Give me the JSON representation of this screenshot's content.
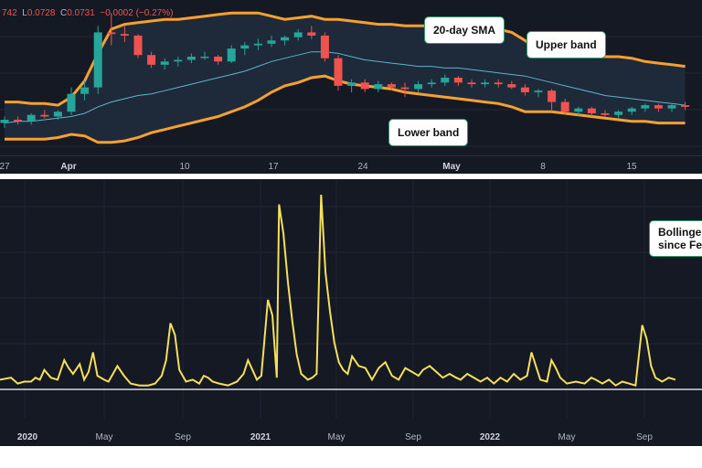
{
  "legend": {
    "open_value": "742",
    "low_label": "L",
    "low_value": "0.0728",
    "close_label": "C",
    "close_value": "0.0731",
    "change": "−0.0002 (−0.27%)"
  },
  "callouts": {
    "sma": "20-day SMA",
    "upper": "Upper band",
    "lower": "Lower band",
    "bollinger_line1": "Bollinge",
    "bollinger_line2": "since Fe"
  },
  "colors": {
    "background": "#151924",
    "up_candle": "#26a69a",
    "down_candle": "#ef5350",
    "band": "#f5a030",
    "sma": "#5fb3c9",
    "width_line": "#f4e05a",
    "baseline": "#ffffff"
  },
  "chart_data": [
    {
      "type": "candlestick",
      "x_ticks": [
        {
          "label": "27",
          "bold": false
        },
        {
          "label": "Apr",
          "bold": true
        },
        {
          "label": "10",
          "bold": false
        },
        {
          "label": "17",
          "bold": false
        },
        {
          "label": "24",
          "bold": false
        },
        {
          "label": "May",
          "bold": true
        },
        {
          "label": "8",
          "bold": false
        },
        {
          "label": "15",
          "bold": false
        }
      ],
      "candles": [
        [
          0.0712,
          0.0716,
          0.0709,
          0.0714
        ],
        [
          0.0714,
          0.0716,
          0.0711,
          0.0713
        ],
        [
          0.0713,
          0.0718,
          0.0711,
          0.0717
        ],
        [
          0.0717,
          0.072,
          0.0715,
          0.0716
        ],
        [
          0.0716,
          0.072,
          0.0714,
          0.0719
        ],
        [
          0.0719,
          0.0734,
          0.0717,
          0.073
        ],
        [
          0.073,
          0.0738,
          0.0726,
          0.0734
        ],
        [
          0.0734,
          0.0772,
          0.073,
          0.0768
        ],
        [
          0.0768,
          0.078,
          0.076,
          0.0767
        ],
        [
          0.0767,
          0.0772,
          0.0762,
          0.0766
        ],
        [
          0.0766,
          0.0767,
          0.0752,
          0.0754
        ],
        [
          0.0754,
          0.0756,
          0.0746,
          0.0748
        ],
        [
          0.0748,
          0.0752,
          0.0745,
          0.075
        ],
        [
          0.075,
          0.0753,
          0.0747,
          0.0751
        ],
        [
          0.0751,
          0.0755,
          0.0749,
          0.0753
        ],
        [
          0.0753,
          0.0756,
          0.0751,
          0.0753
        ],
        [
          0.0753,
          0.0754,
          0.0748,
          0.075
        ],
        [
          0.075,
          0.076,
          0.0749,
          0.0758
        ],
        [
          0.0758,
          0.0762,
          0.0754,
          0.076
        ],
        [
          0.076,
          0.0764,
          0.0757,
          0.0761
        ],
        [
          0.0761,
          0.0766,
          0.0759,
          0.0763
        ],
        [
          0.0763,
          0.0766,
          0.076,
          0.0765
        ],
        [
          0.0765,
          0.077,
          0.0763,
          0.0768
        ],
        [
          0.0768,
          0.0772,
          0.0764,
          0.0766
        ],
        [
          0.0766,
          0.0768,
          0.075,
          0.0752
        ],
        [
          0.0752,
          0.0754,
          0.0732,
          0.0735
        ],
        [
          0.0735,
          0.0739,
          0.0731,
          0.0737
        ],
        [
          0.0737,
          0.0739,
          0.0731,
          0.0733
        ],
        [
          0.0733,
          0.0738,
          0.0731,
          0.0736
        ],
        [
          0.0736,
          0.0737,
          0.0732,
          0.0734
        ],
        [
          0.0734,
          0.0737,
          0.0728,
          0.0733
        ],
        [
          0.0733,
          0.0738,
          0.0731,
          0.0736
        ],
        [
          0.0736,
          0.0739,
          0.0734,
          0.0737
        ],
        [
          0.0737,
          0.0742,
          0.0735,
          0.074
        ],
        [
          0.074,
          0.0741,
          0.0735,
          0.0737
        ],
        [
          0.0737,
          0.0739,
          0.0734,
          0.0736
        ],
        [
          0.0736,
          0.0739,
          0.0734,
          0.0737
        ],
        [
          0.0737,
          0.0739,
          0.0734,
          0.0736
        ],
        [
          0.0736,
          0.0738,
          0.0733,
          0.0734
        ],
        [
          0.0734,
          0.0736,
          0.0729,
          0.0731
        ],
        [
          0.0731,
          0.0733,
          0.0728,
          0.0732
        ],
        [
          0.0732,
          0.0733,
          0.0719,
          0.0725
        ],
        [
          0.0725,
          0.0727,
          0.0717,
          0.0719
        ],
        [
          0.0719,
          0.0722,
          0.0716,
          0.0721
        ],
        [
          0.0721,
          0.0722,
          0.0716,
          0.0718
        ],
        [
          0.0718,
          0.072,
          0.0716,
          0.0717
        ],
        [
          0.0717,
          0.072,
          0.0715,
          0.0719
        ],
        [
          0.0719,
          0.0722,
          0.0717,
          0.0721
        ],
        [
          0.0721,
          0.0724,
          0.0719,
          0.0723
        ],
        [
          0.0723,
          0.0724,
          0.0719,
          0.0721
        ],
        [
          0.0721,
          0.0724,
          0.0719,
          0.0723
        ],
        [
          0.0723,
          0.0725,
          0.072,
          0.0722
        ]
      ],
      "upper_band": [
        0.0725,
        0.0725,
        0.0724,
        0.0724,
        0.0723,
        0.0728,
        0.0738,
        0.0755,
        0.077,
        0.0773,
        0.0774,
        0.0775,
        0.0776,
        0.0776,
        0.0777,
        0.0778,
        0.0779,
        0.078,
        0.078,
        0.078,
        0.0778,
        0.0776,
        0.0777,
        0.0778,
        0.0776,
        0.0776,
        0.0775,
        0.0774,
        0.0773,
        0.0773,
        0.0772,
        0.0772,
        0.0772,
        0.0772,
        0.0772,
        0.0772,
        0.0771,
        0.077,
        0.0768,
        0.0763,
        0.0757,
        0.0754,
        0.0753,
        0.0753,
        0.0753,
        0.0753,
        0.0753,
        0.0752,
        0.075,
        0.0749,
        0.0748,
        0.0747
      ],
      "sma": [
        0.0712,
        0.0713,
        0.0713,
        0.0714,
        0.0715,
        0.0716,
        0.0718,
        0.0722,
        0.0725,
        0.0727,
        0.0729,
        0.073,
        0.0732,
        0.0734,
        0.0736,
        0.0738,
        0.074,
        0.0742,
        0.0744,
        0.0747,
        0.075,
        0.0752,
        0.0754,
        0.0756,
        0.0756,
        0.0755,
        0.0753,
        0.0751,
        0.075,
        0.0749,
        0.0748,
        0.0747,
        0.0747,
        0.0746,
        0.0746,
        0.0745,
        0.0744,
        0.0743,
        0.0742,
        0.0741,
        0.0739,
        0.0737,
        0.0735,
        0.0733,
        0.0731,
        0.0729,
        0.0728,
        0.0727,
        0.0726,
        0.0725,
        0.0724,
        0.0723
      ],
      "lower_band": [
        0.0702,
        0.0702,
        0.0702,
        0.0702,
        0.0703,
        0.0705,
        0.0704,
        0.07,
        0.07,
        0.0701,
        0.0703,
        0.0706,
        0.0708,
        0.071,
        0.0712,
        0.0714,
        0.0716,
        0.0719,
        0.0722,
        0.0726,
        0.0731,
        0.0735,
        0.0737,
        0.074,
        0.0741,
        0.0738,
        0.0736,
        0.0735,
        0.0734,
        0.0733,
        0.0731,
        0.073,
        0.0729,
        0.0728,
        0.0727,
        0.0726,
        0.0725,
        0.0724,
        0.0722,
        0.0719,
        0.0719,
        0.0719,
        0.0718,
        0.0717,
        0.0716,
        0.0715,
        0.0714,
        0.0713,
        0.0713,
        0.0712,
        0.0712,
        0.0712
      ],
      "ylim": [
        0.0692,
        0.0788
      ]
    },
    {
      "type": "line",
      "x_ticks": [
        {
          "label": "2020",
          "bold": true
        },
        {
          "label": "May",
          "bold": false
        },
        {
          "label": "Sep",
          "bold": false
        },
        {
          "label": "2021",
          "bold": true
        },
        {
          "label": "May",
          "bold": false
        },
        {
          "label": "Sep",
          "bold": false
        },
        {
          "label": "2022",
          "bold": true
        },
        {
          "label": "May",
          "bold": false
        },
        {
          "label": "Sep",
          "bold": false
        }
      ],
      "xlim": [
        2019.95,
        2023.12
      ],
      "ylim": [
        0,
        1.08
      ],
      "baseline": 0.0,
      "points": [
        [
          2019.95,
          0.05
        ],
        [
          2020.0,
          0.06
        ],
        [
          2020.03,
          0.03
        ],
        [
          2020.06,
          0.04
        ],
        [
          2020.09,
          0.04
        ],
        [
          2020.11,
          0.06
        ],
        [
          2020.13,
          0.05
        ],
        [
          2020.15,
          0.1
        ],
        [
          2020.18,
          0.06
        ],
        [
          2020.21,
          0.05
        ],
        [
          2020.24,
          0.15
        ],
        [
          2020.26,
          0.11
        ],
        [
          2020.28,
          0.08
        ],
        [
          2020.31,
          0.13
        ],
        [
          2020.33,
          0.05
        ],
        [
          2020.35,
          0.09
        ],
        [
          2020.37,
          0.19
        ],
        [
          2020.39,
          0.07
        ],
        [
          2020.42,
          0.05
        ],
        [
          2020.44,
          0.04
        ],
        [
          2020.46,
          0.08
        ],
        [
          2020.48,
          0.12
        ],
        [
          2020.51,
          0.07
        ],
        [
          2020.54,
          0.03
        ],
        [
          2020.58,
          0.02
        ],
        [
          2020.62,
          0.02
        ],
        [
          2020.65,
          0.03
        ],
        [
          2020.68,
          0.07
        ],
        [
          2020.7,
          0.15
        ],
        [
          2020.72,
          0.34
        ],
        [
          2020.74,
          0.28
        ],
        [
          2020.76,
          0.1
        ],
        [
          2020.79,
          0.04
        ],
        [
          2020.82,
          0.05
        ],
        [
          2020.85,
          0.03
        ],
        [
          2020.87,
          0.07
        ],
        [
          2020.89,
          0.06
        ],
        [
          2020.91,
          0.04
        ],
        [
          2020.94,
          0.03
        ],
        [
          2020.98,
          0.02
        ],
        [
          2021.02,
          0.04
        ],
        [
          2021.05,
          0.08
        ],
        [
          2021.07,
          0.15
        ],
        [
          2021.09,
          0.1
        ],
        [
          2021.11,
          0.05
        ],
        [
          2021.13,
          0.07
        ],
        [
          2021.16,
          0.46
        ],
        [
          2021.18,
          0.38
        ],
        [
          2021.2,
          0.06
        ],
        [
          2021.21,
          0.95
        ],
        [
          2021.23,
          0.8
        ],
        [
          2021.25,
          0.55
        ],
        [
          2021.27,
          0.35
        ],
        [
          2021.29,
          0.18
        ],
        [
          2021.31,
          0.08
        ],
        [
          2021.34,
          0.05
        ],
        [
          2021.36,
          0.06
        ],
        [
          2021.38,
          0.08
        ],
        [
          2021.4,
          1.0
        ],
        [
          2021.42,
          0.6
        ],
        [
          2021.44,
          0.4
        ],
        [
          2021.46,
          0.24
        ],
        [
          2021.48,
          0.14
        ],
        [
          2021.5,
          0.1
        ],
        [
          2021.52,
          0.08
        ],
        [
          2021.54,
          0.17
        ],
        [
          2021.57,
          0.12
        ],
        [
          2021.6,
          0.11
        ],
        [
          2021.63,
          0.05
        ],
        [
          2021.66,
          0.11
        ],
        [
          2021.69,
          0.14
        ],
        [
          2021.72,
          0.07
        ],
        [
          2021.75,
          0.05
        ],
        [
          2021.78,
          0.11
        ],
        [
          2021.81,
          0.09
        ],
        [
          2021.84,
          0.07
        ],
        [
          2021.86,
          0.1
        ],
        [
          2021.89,
          0.12
        ],
        [
          2021.92,
          0.09
        ],
        [
          2021.95,
          0.06
        ],
        [
          2021.98,
          0.08
        ],
        [
          2022.01,
          0.06
        ],
        [
          2022.03,
          0.05
        ],
        [
          2022.06,
          0.08
        ],
        [
          2022.09,
          0.06
        ],
        [
          2022.12,
          0.04
        ],
        [
          2022.15,
          0.06
        ],
        [
          2022.18,
          0.03
        ],
        [
          2022.21,
          0.06
        ],
        [
          2022.24,
          0.04
        ],
        [
          2022.27,
          0.08
        ],
        [
          2022.3,
          0.05
        ],
        [
          2022.33,
          0.07
        ],
        [
          2022.35,
          0.19
        ],
        [
          2022.37,
          0.12
        ],
        [
          2022.39,
          0.05
        ],
        [
          2022.42,
          0.04
        ],
        [
          2022.44,
          0.15
        ],
        [
          2022.46,
          0.11
        ],
        [
          2022.48,
          0.06
        ],
        [
          2022.51,
          0.03
        ],
        [
          2022.55,
          0.04
        ],
        [
          2022.59,
          0.03
        ],
        [
          2022.62,
          0.06
        ],
        [
          2022.64,
          0.05
        ],
        [
          2022.67,
          0.03
        ],
        [
          2022.7,
          0.05
        ],
        [
          2022.73,
          0.02
        ],
        [
          2022.76,
          0.04
        ],
        [
          2022.79,
          0.03
        ],
        [
          2022.82,
          0.02
        ],
        [
          2022.85,
          0.33
        ],
        [
          2022.87,
          0.26
        ],
        [
          2022.89,
          0.12
        ],
        [
          2022.91,
          0.06
        ],
        [
          2022.94,
          0.04
        ],
        [
          2022.97,
          0.06
        ],
        [
          2023.0,
          0.05
        ]
      ]
    }
  ]
}
